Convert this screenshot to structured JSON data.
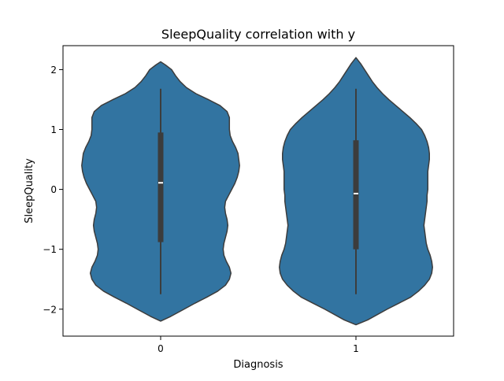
{
  "chart_data": {
    "type": "violin",
    "title": "SleepQuality correlation with y",
    "xlabel": "Diagnosis",
    "ylabel": "SleepQuality",
    "categories": [
      "0",
      "1"
    ],
    "ylim": [
      -2.45,
      2.4
    ],
    "yticks": [
      -2,
      -1,
      0,
      1,
      2
    ],
    "ytick_labels": [
      "−2",
      "−1",
      "0",
      "1",
      "2"
    ],
    "grid": false,
    "colors": {
      "violin": "#3274a1",
      "edge": "#3c3c3c",
      "box": "#3c3c3c",
      "median": "#ffffff"
    },
    "violins": [
      {
        "category": "0",
        "min": -1.75,
        "q1": -0.88,
        "median": 0.11,
        "q3": 0.95,
        "max": 1.68,
        "profile": [
          [
            -2.2,
            0.0
          ],
          [
            -2.12,
            0.13
          ],
          [
            -2.0,
            0.3
          ],
          [
            -1.9,
            0.44
          ],
          [
            -1.8,
            0.59
          ],
          [
            -1.7,
            0.73
          ],
          [
            -1.6,
            0.83
          ],
          [
            -1.5,
            0.88
          ],
          [
            -1.4,
            0.9
          ],
          [
            -1.3,
            0.88
          ],
          [
            -1.2,
            0.84
          ],
          [
            -1.1,
            0.81
          ],
          [
            -1.0,
            0.8
          ],
          [
            -0.9,
            0.81
          ],
          [
            -0.8,
            0.83
          ],
          [
            -0.7,
            0.85
          ],
          [
            -0.6,
            0.86
          ],
          [
            -0.5,
            0.85
          ],
          [
            -0.4,
            0.83
          ],
          [
            -0.3,
            0.82
          ],
          [
            -0.2,
            0.83
          ],
          [
            -0.1,
            0.87
          ],
          [
            0.0,
            0.91
          ],
          [
            0.1,
            0.95
          ],
          [
            0.2,
            0.98
          ],
          [
            0.3,
            1.0
          ],
          [
            0.4,
            1.01
          ],
          [
            0.5,
            1.0
          ],
          [
            0.6,
            0.99
          ],
          [
            0.7,
            0.96
          ],
          [
            0.8,
            0.92
          ],
          [
            0.9,
            0.89
          ],
          [
            1.0,
            0.88
          ],
          [
            1.1,
            0.88
          ],
          [
            1.2,
            0.88
          ],
          [
            1.3,
            0.85
          ],
          [
            1.4,
            0.76
          ],
          [
            1.5,
            0.61
          ],
          [
            1.6,
            0.45
          ],
          [
            1.7,
            0.33
          ],
          [
            1.8,
            0.25
          ],
          [
            1.9,
            0.19
          ],
          [
            2.0,
            0.14
          ],
          [
            2.08,
            0.06
          ],
          [
            2.13,
            0.0
          ]
        ]
      },
      {
        "category": "1",
        "min": -1.75,
        "q1": -1.0,
        "median": -0.07,
        "q3": 0.82,
        "max": 1.68,
        "profile": [
          [
            -2.26,
            0.0
          ],
          [
            -2.18,
            0.15
          ],
          [
            -2.0,
            0.4
          ],
          [
            -1.9,
            0.55
          ],
          [
            -1.8,
            0.7
          ],
          [
            -1.7,
            0.8
          ],
          [
            -1.6,
            0.88
          ],
          [
            -1.5,
            0.94
          ],
          [
            -1.4,
            0.97
          ],
          [
            -1.3,
            0.98
          ],
          [
            -1.2,
            0.97
          ],
          [
            -1.1,
            0.95
          ],
          [
            -1.0,
            0.92
          ],
          [
            -0.9,
            0.9
          ],
          [
            -0.8,
            0.89
          ],
          [
            -0.7,
            0.88
          ],
          [
            -0.6,
            0.87
          ],
          [
            -0.5,
            0.88
          ],
          [
            -0.4,
            0.89
          ],
          [
            -0.3,
            0.9
          ],
          [
            -0.2,
            0.91
          ],
          [
            -0.1,
            0.91
          ],
          [
            0.0,
            0.92
          ],
          [
            0.1,
            0.92
          ],
          [
            0.2,
            0.92
          ],
          [
            0.3,
            0.92
          ],
          [
            0.4,
            0.93
          ],
          [
            0.5,
            0.94
          ],
          [
            0.6,
            0.94
          ],
          [
            0.7,
            0.93
          ],
          [
            0.8,
            0.91
          ],
          [
            0.9,
            0.88
          ],
          [
            1.0,
            0.84
          ],
          [
            1.1,
            0.77
          ],
          [
            1.2,
            0.69
          ],
          [
            1.3,
            0.6
          ],
          [
            1.4,
            0.51
          ],
          [
            1.5,
            0.42
          ],
          [
            1.6,
            0.34
          ],
          [
            1.7,
            0.27
          ],
          [
            1.8,
            0.21
          ],
          [
            1.9,
            0.16
          ],
          [
            2.0,
            0.11
          ],
          [
            2.1,
            0.06
          ],
          [
            2.2,
            0.0
          ]
        ]
      }
    ]
  }
}
